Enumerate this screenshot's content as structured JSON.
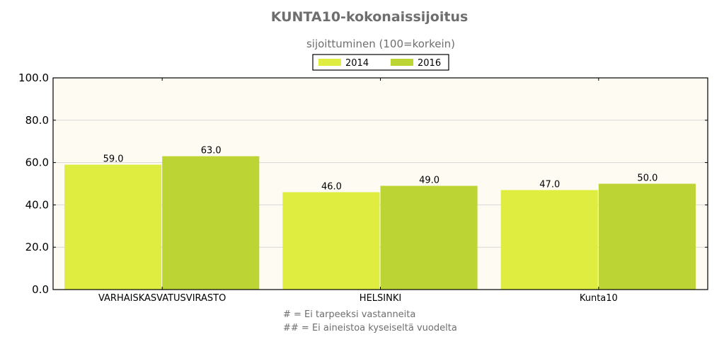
{
  "chart_data": {
    "type": "bar",
    "title": "KUNTA10-kokonaissijoitus",
    "subtitle": "sijoittuminen (100=korkein)",
    "categories": [
      "VARHAISKASVATUSVIRASTO",
      "HELSINKI",
      "Kunta10"
    ],
    "series": [
      {
        "name": "2014",
        "values": [
          59.0,
          46.0,
          47.0
        ],
        "color": "#deed3f",
        "labels": [
          "59.0",
          "46.0",
          "47.0"
        ]
      },
      {
        "name": "2016",
        "values": [
          63.0,
          49.0,
          50.0
        ],
        "color": "#bcd534",
        "labels": [
          "63.0",
          "49.0",
          "50.0"
        ]
      }
    ],
    "ylim": [
      0,
      100
    ],
    "yticks": [
      0,
      20,
      40,
      60,
      80,
      100
    ],
    "ytick_labels": [
      "0.0",
      "20.0",
      "40.0",
      "60.0",
      "80.0",
      "100.0"
    ],
    "xlabel": "",
    "ylabel": "",
    "grid": true,
    "legend_position": "top-center",
    "plot_background": "#fefbf3"
  },
  "footnotes": [
    "# = Ei tarpeeksi vastanneita",
    "## = Ei aineistoa kyseiseltä vuodelta"
  ]
}
